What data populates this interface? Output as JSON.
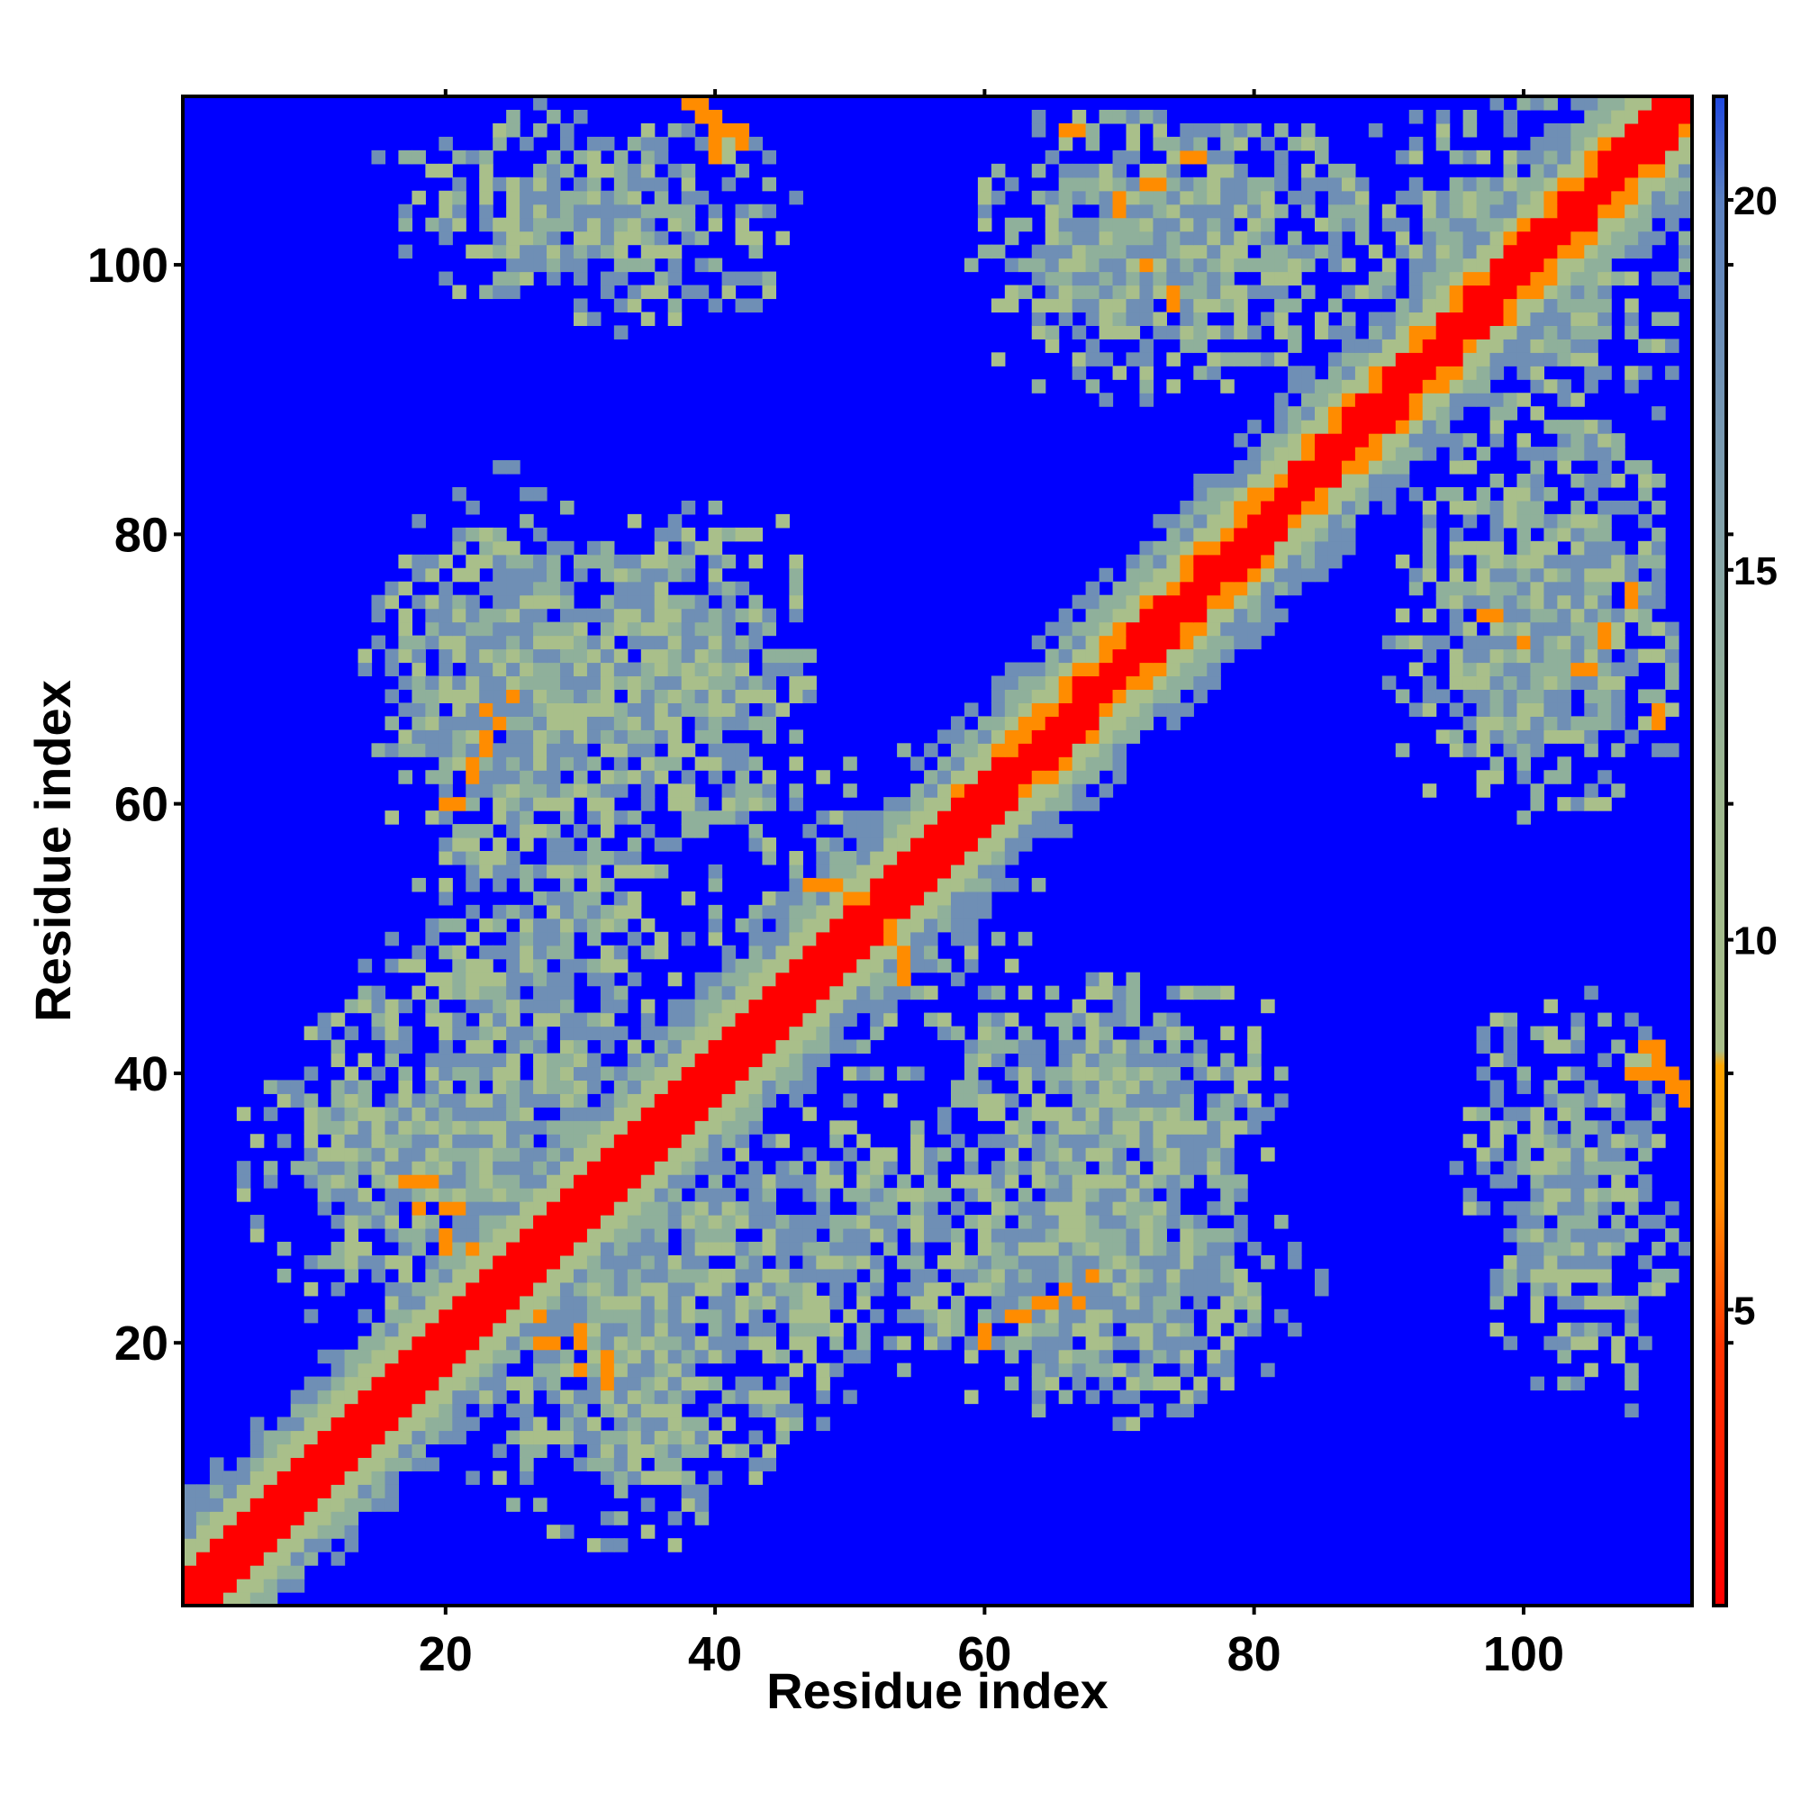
{
  "chart_data": {
    "type": "heatmap",
    "title": "",
    "xlabel": "Residue index",
    "ylabel": "Residue index",
    "n_residues": 112,
    "xlim": [
      1,
      112
    ],
    "ylim": [
      1,
      112
    ],
    "x_ticks": [
      20,
      40,
      60,
      80,
      100
    ],
    "y_ticks": [
      20,
      40,
      60,
      80,
      100
    ],
    "grid": false,
    "legend": "right",
    "colorbar": {
      "min": 1,
      "max": 21.4,
      "ticks": [
        5,
        10,
        15,
        20
      ],
      "stops": [
        {
          "value": 1,
          "color": "#ff0000"
        },
        {
          "value": 4.5,
          "color": "#ff3300"
        },
        {
          "value": 6.5,
          "color": "#ff8c00"
        },
        {
          "value": 8.3,
          "color": "#ffa500"
        },
        {
          "value": 8.5,
          "color": "#a9bf8a"
        },
        {
          "value": 12,
          "color": "#9db88f"
        },
        {
          "value": 16,
          "color": "#7f9fad"
        },
        {
          "value": 20,
          "color": "#5b80c0"
        },
        {
          "value": 21.4,
          "color": "#1f48e0"
        }
      ]
    },
    "background_color": "#0000ff",
    "cell_colors": {
      "diagonal": "#ff0000",
      "close": "#ff8c00",
      "contact": "#a9bf8a",
      "mid": "#8fb09b",
      "far": "#6f8fb5",
      "none": "#0000ff"
    },
    "contact_regions": [
      {
        "x": [
          20,
          48
        ],
        "y": [
          16,
          34
        ],
        "density": 0.75
      },
      {
        "x": [
          5,
          30
        ],
        "y": [
          20,
          48
        ],
        "density": 0.72
      },
      {
        "x": [
          16,
          40
        ],
        "y": [
          56,
          80
        ],
        "density": 0.7
      },
      {
        "x": [
          30,
          48
        ],
        "y": [
          56,
          84
        ],
        "density": 0.6
      },
      {
        "x": [
          15,
          40
        ],
        "y": [
          38,
          62
        ],
        "density": 0.6
      },
      {
        "x": [
          40,
          60
        ],
        "y": [
          44,
          64
        ],
        "density": 0.55
      },
      {
        "x": [
          55,
          85
        ],
        "y": [
          14,
          32
        ],
        "density": 0.7
      },
      {
        "x": [
          55,
          82
        ],
        "y": [
          28,
          46
        ],
        "density": 0.6
      },
      {
        "x": [
          62,
          90
        ],
        "y": [
          90,
          112
        ],
        "density": 0.7
      },
      {
        "x": [
          15,
          48
        ],
        "y": [
          96,
          112
        ],
        "density": 0.55
      },
      {
        "x": [
          90,
          112
        ],
        "y": [
          58,
          82
        ],
        "density": 0.68
      },
      {
        "x": [
          95,
          112
        ],
        "y": [
          18,
          46
        ],
        "density": 0.55
      },
      {
        "x": [
          83,
          112
        ],
        "y": [
          94,
          112
        ],
        "density": 0.6
      }
    ],
    "hotspots": [
      {
        "x": 20,
        "y": 60
      },
      {
        "x": 22,
        "y": 63
      },
      {
        "x": 23,
        "y": 67
      },
      {
        "x": 25,
        "y": 68
      },
      {
        "x": 27,
        "y": 20
      },
      {
        "x": 30,
        "y": 18
      },
      {
        "x": 32,
        "y": 17
      },
      {
        "x": 18,
        "y": 32
      },
      {
        "x": 20,
        "y": 30
      },
      {
        "x": 22,
        "y": 27
      },
      {
        "x": 38,
        "y": 112
      },
      {
        "x": 39,
        "y": 111
      },
      {
        "x": 40,
        "y": 110
      },
      {
        "x": 62,
        "y": 22
      },
      {
        "x": 64,
        "y": 23
      },
      {
        "x": 66,
        "y": 24
      },
      {
        "x": 68,
        "y": 25
      },
      {
        "x": 108,
        "y": 40
      },
      {
        "x": 110,
        "y": 41
      },
      {
        "x": 109,
        "y": 42
      },
      {
        "x": 47,
        "y": 54
      },
      {
        "x": 48,
        "y": 54
      },
      {
        "x": 50,
        "y": 53
      },
      {
        "x": 72,
        "y": 106
      },
      {
        "x": 75,
        "y": 108
      },
      {
        "x": 66,
        "y": 110
      },
      {
        "x": 100,
        "y": 72
      },
      {
        "x": 104,
        "y": 70
      },
      {
        "x": 97,
        "y": 74
      }
    ],
    "seed": 7
  }
}
